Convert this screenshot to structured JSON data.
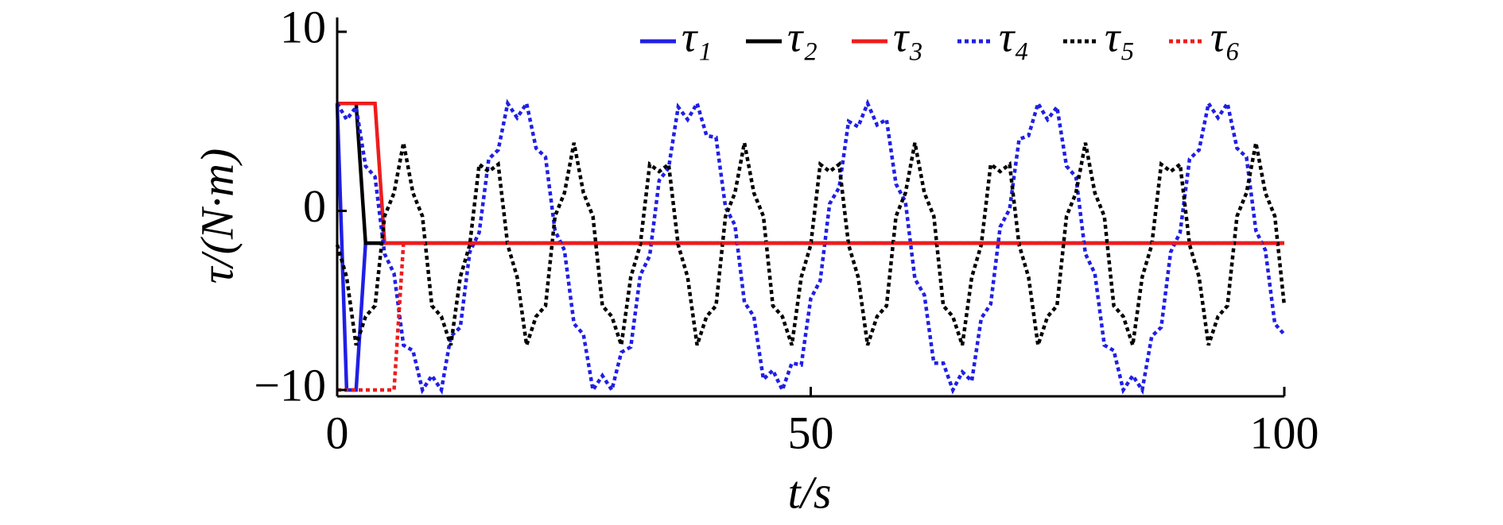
{
  "chart_data": {
    "type": "line",
    "xlabel": "t/s",
    "ylabel": "τ/(N·m)",
    "xlim": [
      0,
      100
    ],
    "xticks": [
      0,
      50,
      100
    ],
    "ylim": [
      -10,
      10
    ],
    "yticks": [
      {
        "value": -10,
        "label": "−10"
      },
      0,
      10
    ],
    "grid": false,
    "legend": "top",
    "x": [
      0,
      1,
      2,
      3,
      4,
      5,
      6,
      7,
      8,
      9,
      10,
      11,
      12,
      13,
      14,
      15,
      16,
      17,
      18,
      19,
      20,
      21,
      22,
      23,
      24,
      25,
      26,
      27,
      28,
      29,
      30,
      31,
      32,
      33,
      34,
      35,
      36,
      37,
      38,
      39,
      40,
      41,
      42,
      43,
      44,
      45,
      46,
      47,
      48,
      49,
      50,
      51,
      52,
      53,
      54,
      55,
      56,
      57,
      58,
      59,
      60,
      61,
      62,
      63,
      64,
      65,
      66,
      67,
      68,
      69,
      70,
      71,
      72,
      73,
      74,
      75,
      76,
      77,
      78,
      79,
      80,
      81,
      82,
      83,
      84,
      85,
      86,
      87,
      88,
      89,
      90,
      91,
      92,
      93,
      94,
      95,
      96,
      97,
      98,
      99,
      100
    ],
    "series": [
      {
        "name": "τ₁",
        "color": "#1f1fe6",
        "style": "solid",
        "values": [
          6,
          -10,
          -10,
          -1.8,
          -1.8,
          -1.8,
          -1.8,
          -1.8,
          -1.8,
          -1.8,
          -1.8,
          -1.8,
          -1.8,
          -1.8,
          -1.8,
          -1.8,
          -1.8,
          -1.8,
          -1.8,
          -1.8,
          -1.8,
          -1.8,
          -1.8,
          -1.8,
          -1.8,
          -1.8,
          -1.8,
          -1.8,
          -1.8,
          -1.8,
          -1.8,
          -1.8,
          -1.8,
          -1.8,
          -1.8,
          -1.8,
          -1.8,
          -1.8,
          -1.8,
          -1.8,
          -1.8,
          -1.8,
          -1.8,
          -1.8,
          -1.8,
          -1.8,
          -1.8,
          -1.8,
          -1.8,
          -1.8,
          -1.8,
          -1.8,
          -1.8,
          -1.8,
          -1.8,
          -1.8,
          -1.8,
          -1.8,
          -1.8,
          -1.8,
          -1.8,
          -1.8,
          -1.8,
          -1.8,
          -1.8,
          -1.8,
          -1.8,
          -1.8,
          -1.8,
          -1.8,
          -1.8,
          -1.8,
          -1.8,
          -1.8,
          -1.8,
          -1.8,
          -1.8,
          -1.8,
          -1.8,
          -1.8,
          -1.8,
          -1.8,
          -1.8,
          -1.8,
          -1.8,
          -1.8,
          -1.8,
          -1.8,
          -1.8,
          -1.8,
          -1.8,
          -1.8,
          -1.8,
          -1.8,
          -1.8,
          -1.8,
          -1.8,
          -1.8,
          -1.8,
          -1.8,
          -1.8
        ]
      },
      {
        "name": "τ₂",
        "color": "#000000",
        "style": "solid",
        "values": [
          6,
          6,
          6,
          -1.8,
          -1.8,
          -1.8,
          -1.8,
          -1.8,
          -1.8,
          -1.8,
          -1.8,
          -1.8,
          -1.8,
          -1.8,
          -1.8,
          -1.8,
          -1.8,
          -1.8,
          -1.8,
          -1.8,
          -1.8,
          -1.8,
          -1.8,
          -1.8,
          -1.8,
          -1.8,
          -1.8,
          -1.8,
          -1.8,
          -1.8,
          -1.8,
          -1.8,
          -1.8,
          -1.8,
          -1.8,
          -1.8,
          -1.8,
          -1.8,
          -1.8,
          -1.8,
          -1.8,
          -1.8,
          -1.8,
          -1.8,
          -1.8,
          -1.8,
          -1.8,
          -1.8,
          -1.8,
          -1.8,
          -1.8,
          -1.8,
          -1.8,
          -1.8,
          -1.8,
          -1.8,
          -1.8,
          -1.8,
          -1.8,
          -1.8,
          -1.8,
          -1.8,
          -1.8,
          -1.8,
          -1.8,
          -1.8,
          -1.8,
          -1.8,
          -1.8,
          -1.8,
          -1.8,
          -1.8,
          -1.8,
          -1.8,
          -1.8,
          -1.8,
          -1.8,
          -1.8,
          -1.8,
          -1.8,
          -1.8,
          -1.8,
          -1.8,
          -1.8,
          -1.8,
          -1.8,
          -1.8,
          -1.8,
          -1.8,
          -1.8,
          -1.8,
          -1.8,
          -1.8,
          -1.8,
          -1.8,
          -1.8,
          -1.8,
          -1.8,
          -1.8,
          -1.8,
          -1.8
        ]
      },
      {
        "name": "τ₃",
        "color": "#ee1c1c",
        "style": "solid",
        "values": [
          6,
          6,
          6,
          6,
          6,
          -1.8,
          -1.8,
          -1.8,
          -1.8,
          -1.8,
          -1.8,
          -1.8,
          -1.8,
          -1.8,
          -1.8,
          -1.8,
          -1.8,
          -1.8,
          -1.8,
          -1.8,
          -1.8,
          -1.8,
          -1.8,
          -1.8,
          -1.8,
          -1.8,
          -1.8,
          -1.8,
          -1.8,
          -1.8,
          -1.8,
          -1.8,
          -1.8,
          -1.8,
          -1.8,
          -1.8,
          -1.8,
          -1.8,
          -1.8,
          -1.8,
          -1.8,
          -1.8,
          -1.8,
          -1.8,
          -1.8,
          -1.8,
          -1.8,
          -1.8,
          -1.8,
          -1.8,
          -1.8,
          -1.8,
          -1.8,
          -1.8,
          -1.8,
          -1.8,
          -1.8,
          -1.8,
          -1.8,
          -1.8,
          -1.8,
          -1.8,
          -1.8,
          -1.8,
          -1.8,
          -1.8,
          -1.8,
          -1.8,
          -1.8,
          -1.8,
          -1.8,
          -1.8,
          -1.8,
          -1.8,
          -1.8,
          -1.8,
          -1.8,
          -1.8,
          -1.8,
          -1.8,
          -1.8,
          -1.8,
          -1.8,
          -1.8,
          -1.8,
          -1.8,
          -1.8,
          -1.8,
          -1.8,
          -1.8,
          -1.8,
          -1.8,
          -1.8,
          -1.8,
          -1.8,
          -1.8,
          -1.8,
          -1.8,
          -1.8,
          -1.8,
          -1.8
        ]
      },
      {
        "name": "τ₄",
        "color": "#1f1fe6",
        "style": "dotted",
        "values": [
          6,
          5.1,
          5.8,
          2.5,
          1.9,
          -2.4,
          -3.5,
          -7.5,
          -7.8,
          -10,
          -9.2,
          -10,
          -7,
          -6.5,
          -2.3,
          -1.2,
          2.9,
          3.4,
          6,
          5.2,
          6,
          3.5,
          3,
          -1.1,
          -2.2,
          -6.3,
          -6.9,
          -10,
          -9.2,
          -10,
          -7.9,
          -7.6,
          -3.6,
          -2.5,
          1.7,
          2.4,
          5.8,
          5.1,
          6,
          4.2,
          4.1,
          0.2,
          -0.8,
          -5.1,
          -5.9,
          -9.4,
          -8.9,
          -10,
          -8.5,
          -8.6,
          -4.9,
          -3.9,
          0.4,
          1.3,
          5,
          4.7,
          6,
          4.8,
          5.1,
          1.5,
          0.5,
          -3.8,
          -4.7,
          -8.5,
          -8.5,
          -10,
          -9,
          -9.5,
          -6,
          -5.2,
          -0.9,
          0.1,
          4,
          4.2,
          6,
          5.1,
          5.8,
          2.5,
          1.9,
          -2.4,
          -3.5,
          -7.5,
          -7.8,
          -10,
          -9.2,
          -10,
          -7,
          -6.5,
          -2.3,
          -1.2,
          2.9,
          3.4,
          6,
          5.2,
          6,
          3.5,
          3,
          -1.1,
          -2.2,
          -6.3,
          -6.9
        ]
      },
      {
        "name": "τ₅",
        "color": "#000000",
        "style": "dotted",
        "values": [
          -1.9,
          -3.7,
          -7.5,
          -5.9,
          -5.3,
          -0.3,
          1,
          3.8,
          1,
          -0.3,
          -5.3,
          -5.9,
          -7.5,
          -3.7,
          -1.9,
          2.6,
          2.2,
          2.6,
          -1.9,
          -3.7,
          -7.5,
          -5.9,
          -5.3,
          -0.3,
          1,
          3.8,
          1,
          -0.3,
          -5.3,
          -5.9,
          -7.5,
          -3.7,
          -1.9,
          2.6,
          2.2,
          2.6,
          -1.9,
          -3.7,
          -7.5,
          -5.9,
          -5.3,
          -0.3,
          1,
          3.8,
          1,
          -0.3,
          -5.3,
          -5.9,
          -7.5,
          -3.7,
          -1.9,
          2.6,
          2.2,
          2.6,
          -1.9,
          -3.7,
          -7.5,
          -5.9,
          -5.3,
          -0.3,
          1,
          3.8,
          1,
          -0.3,
          -5.3,
          -5.9,
          -7.5,
          -3.7,
          -1.9,
          2.6,
          2.2,
          2.6,
          -1.9,
          -3.7,
          -7.5,
          -5.9,
          -5.3,
          -0.3,
          1,
          3.8,
          1,
          -0.3,
          -5.3,
          -5.9,
          -7.5,
          -3.7,
          -1.9,
          2.6,
          2.2,
          2.6,
          -1.9,
          -3.7,
          -7.5,
          -5.9,
          -5.3,
          -0.3,
          1,
          3.8,
          1,
          -0.3,
          -5.3
        ]
      },
      {
        "name": "τ₆",
        "color": "#ee1c1c",
        "style": "dotted",
        "values": [
          -10,
          -10,
          -10,
          -10,
          -10,
          -10,
          -10,
          -1.8,
          -1.8,
          -1.8,
          -1.8,
          -1.8,
          -1.8,
          -1.8,
          -1.8,
          -1.8,
          -1.8,
          -1.8,
          -1.8,
          -1.8,
          -1.8,
          -1.8,
          -1.8,
          -1.8,
          -1.8,
          -1.8,
          -1.8,
          -1.8,
          -1.8,
          -1.8,
          -1.8,
          -1.8,
          -1.8,
          -1.8,
          -1.8,
          -1.8,
          -1.8,
          -1.8,
          -1.8,
          -1.8,
          -1.8,
          -1.8,
          -1.8,
          -1.8,
          -1.8,
          -1.8,
          -1.8,
          -1.8,
          -1.8,
          -1.8,
          -1.8,
          -1.8,
          -1.8,
          -1.8,
          -1.8,
          -1.8,
          -1.8,
          -1.8,
          -1.8,
          -1.8,
          -1.8,
          -1.8,
          -1.8,
          -1.8,
          -1.8,
          -1.8,
          -1.8,
          -1.8,
          -1.8,
          -1.8,
          -1.8,
          -1.8,
          -1.8,
          -1.8,
          -1.8,
          -1.8,
          -1.8,
          -1.8,
          -1.8,
          -1.8,
          -1.8,
          -1.8,
          -1.8,
          -1.8,
          -1.8,
          -1.8,
          -1.8,
          -1.8,
          -1.8,
          -1.8,
          -1.8,
          -1.8,
          -1.8,
          -1.8,
          -1.8,
          -1.8,
          -1.8,
          -1.8,
          -1.8,
          -1.8,
          -1.8
        ]
      }
    ]
  }
}
